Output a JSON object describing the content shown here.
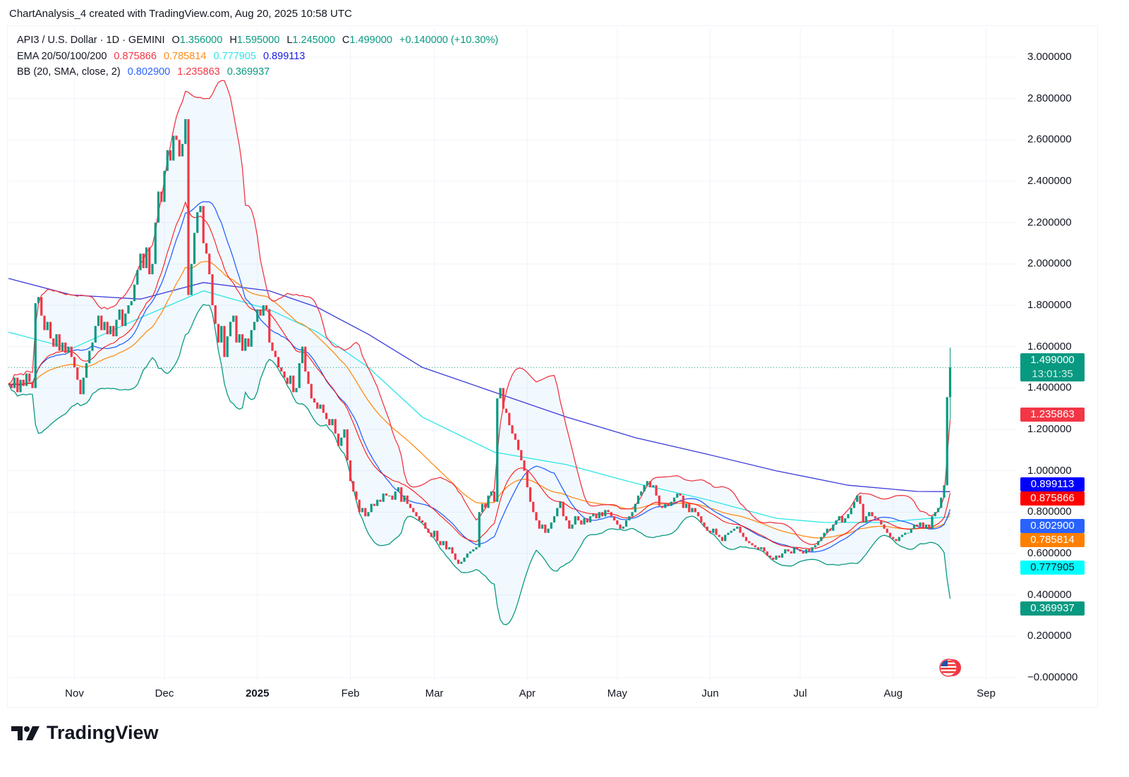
{
  "caption": "ChartAnalysis_4 created with TradingView.com, Aug 20, 2025 10:58 UTC",
  "legend": {
    "symbol": "API3 / U.S. Dollar · 1D · GEMINI",
    "o_label": "O",
    "o": "1.356000",
    "h_label": "H",
    "h": "1.595000",
    "l_label": "L",
    "l": "1.245000",
    "c_label": "C",
    "c": "1.499000",
    "change": "+0.140000 (+10.30%)",
    "ema_label": "EMA 20/50/100/200",
    "ema20": "0.875866",
    "ema50": "0.785814",
    "ema100": "0.777905",
    "ema200": "0.899113",
    "bb_label": "BB (20, SMA, close, 2)",
    "bb_basis": "0.802900",
    "bb_upper": "1.235863",
    "bb_lower": "0.369937"
  },
  "price_labels": {
    "last": "1.499000",
    "countdown": "13:01:35",
    "bb_upper": "1.235863",
    "ema200": "0.899113",
    "ema20": "0.875866",
    "bb_basis": "0.802900",
    "ema50": "0.785814",
    "ema100": "0.777905",
    "bb_lower": "0.369937"
  },
  "colors": {
    "up": "#089981",
    "down": "#f23645",
    "ema20": "#ff0000",
    "ema50": "#ff8c1a",
    "ema100": "#2ee6e6",
    "ema200": "#3b3bd9",
    "bb_basis": "#2962ff",
    "bb_upper": "#f23645",
    "bb_lower": "#089981",
    "label_ema200": "#0000ff",
    "label_ema20": "#ff0000",
    "label_bb_basis": "#2962ff",
    "label_ema50": "#ff7f00",
    "label_ema100": "#00ffff"
  },
  "branding": {
    "name": "TradingView",
    "icon": "tradingview-logo-icon"
  },
  "flag_icon": "us-flag-icon",
  "chart_data": {
    "type": "candlestick",
    "interval": "1D",
    "dates_daily_from": "2024-10-10",
    "close": [
      1.42,
      1.4,
      1.45,
      1.38,
      1.44,
      1.41,
      1.47,
      1.43,
      1.4,
      1.81,
      1.84,
      1.75,
      1.68,
      1.72,
      1.64,
      1.6,
      1.66,
      1.58,
      1.62,
      1.57,
      1.6,
      1.55,
      1.5,
      1.44,
      1.37,
      1.45,
      1.52,
      1.58,
      1.62,
      1.7,
      1.75,
      1.68,
      1.72,
      1.66,
      1.7,
      1.65,
      1.73,
      1.78,
      1.7,
      1.76,
      1.8,
      1.82,
      1.9,
      1.97,
      2.05,
      1.98,
      2.08,
      1.95,
      2.0,
      2.2,
      2.35,
      2.3,
      2.45,
      2.55,
      2.5,
      2.62,
      2.6,
      2.52,
      2.58,
      2.7,
      1.85,
      2.0,
      2.15,
      2.25,
      2.28,
      2.1,
      2.05,
      1.95,
      1.8,
      1.71,
      1.62,
      1.7,
      1.55,
      1.65,
      1.72,
      1.75,
      1.62,
      1.66,
      1.58,
      1.64,
      1.6,
      1.68,
      1.72,
      1.78,
      1.75,
      1.8,
      1.78,
      1.62,
      1.58,
      1.55,
      1.5,
      1.48,
      1.45,
      1.42,
      1.46,
      1.38,
      1.4,
      1.52,
      1.6,
      1.48,
      1.42,
      1.35,
      1.33,
      1.3,
      1.32,
      1.28,
      1.25,
      1.22,
      1.25,
      1.18,
      1.12,
      1.16,
      1.2,
      1.05,
      0.95,
      0.9,
      0.86,
      0.8,
      0.82,
      0.78,
      0.8,
      0.84,
      0.83,
      0.86,
      0.85,
      0.89,
      0.88,
      0.88,
      0.86,
      0.9,
      0.92,
      0.85,
      0.88,
      0.84,
      0.82,
      0.8,
      0.78,
      0.76,
      0.75,
      0.72,
      0.7,
      0.68,
      0.71,
      0.66,
      0.64,
      0.66,
      0.62,
      0.63,
      0.6,
      0.57,
      0.55,
      0.56,
      0.58,
      0.6,
      0.61,
      0.62,
      0.63,
      0.8,
      0.84,
      0.82,
      0.88,
      0.9,
      0.85,
      1.35,
      1.4,
      1.3,
      1.28,
      1.22,
      1.18,
      1.15,
      1.1,
      1.05,
      1.0,
      0.92,
      0.85,
      0.8,
      0.76,
      0.72,
      0.74,
      0.7,
      0.72,
      0.75,
      0.78,
      0.82,
      0.85,
      0.78,
      0.76,
      0.72,
      0.74,
      0.78,
      0.76,
      0.74,
      0.77,
      0.75,
      0.78,
      0.79,
      0.77,
      0.8,
      0.78,
      0.81,
      0.8,
      0.78,
      0.76,
      0.74,
      0.72,
      0.73,
      0.76,
      0.78,
      0.8,
      0.84,
      0.88,
      0.9,
      0.93,
      0.95,
      0.92,
      0.93,
      0.88,
      0.83,
      0.82,
      0.84,
      0.83,
      0.85,
      0.87,
      0.89,
      0.88,
      0.82,
      0.84,
      0.8,
      0.82,
      0.8,
      0.78,
      0.75,
      0.73,
      0.71,
      0.7,
      0.72,
      0.69,
      0.68,
      0.66,
      0.69,
      0.7,
      0.71,
      0.72,
      0.73,
      0.7,
      0.68,
      0.66,
      0.65,
      0.64,
      0.63,
      0.62,
      0.63,
      0.61,
      0.59,
      0.58,
      0.57,
      0.59,
      0.58,
      0.6,
      0.62,
      0.61,
      0.6,
      0.63,
      0.62,
      0.61,
      0.6,
      0.62,
      0.61,
      0.63,
      0.64,
      0.66,
      0.68,
      0.7,
      0.72,
      0.71,
      0.74,
      0.76,
      0.78,
      0.75,
      0.77,
      0.79,
      0.82,
      0.85,
      0.88,
      0.84,
      0.75,
      0.78,
      0.8,
      0.78,
      0.77,
      0.76,
      0.74,
      0.72,
      0.7,
      0.68,
      0.67,
      0.66,
      0.68,
      0.69,
      0.7,
      0.7,
      0.72,
      0.74,
      0.73,
      0.75,
      0.72,
      0.74,
      0.72,
      0.78,
      0.8,
      0.82,
      0.87,
      0.93,
      1.356,
      1.499
    ],
    "last_candle": {
      "open": 1.356,
      "high": 1.595,
      "low": 1.245,
      "close": 1.499
    },
    "ema100_samples": [
      [
        "2024-10-10",
        1.67
      ],
      [
        "2024-10-31",
        1.59
      ],
      [
        "2024-11-23",
        1.74
      ],
      [
        "2024-12-14",
        1.87
      ],
      [
        "2025-01-05",
        1.78
      ],
      [
        "2025-01-21",
        1.67
      ],
      [
        "2025-02-07",
        1.5
      ],
      [
        "2025-02-25",
        1.26
      ],
      [
        "2025-03-21",
        1.09
      ],
      [
        "2025-04-14",
        1.03
      ],
      [
        "2025-05-07",
        0.94
      ],
      [
        "2025-05-31",
        0.86
      ],
      [
        "2025-06-23",
        0.77
      ],
      [
        "2025-07-09",
        0.75
      ],
      [
        "2025-07-28",
        0.75
      ],
      [
        "2025-08-20",
        0.778
      ]
    ],
    "ema200_samples": [
      [
        "2024-10-10",
        1.93
      ],
      [
        "2024-10-31",
        1.85
      ],
      [
        "2024-11-23",
        1.83
      ],
      [
        "2024-12-14",
        1.91
      ],
      [
        "2025-01-05",
        1.87
      ],
      [
        "2025-01-21",
        1.79
      ],
      [
        "2025-02-07",
        1.66
      ],
      [
        "2025-02-25",
        1.5
      ],
      [
        "2025-03-21",
        1.38
      ],
      [
        "2025-04-14",
        1.26
      ],
      [
        "2025-05-07",
        1.16
      ],
      [
        "2025-05-31",
        1.08
      ],
      [
        "2025-06-23",
        1.0
      ],
      [
        "2025-07-17",
        0.93
      ],
      [
        "2025-08-09",
        0.9
      ],
      [
        "2025-08-20",
        0.899
      ]
    ],
    "ylim": [
      0,
      3
    ],
    "y_ticks": [
      "3.000000",
      "2.800000",
      "2.600000",
      "2.400000",
      "2.200000",
      "2.000000",
      "1.800000",
      "1.600000",
      "1.400000",
      "1.200000",
      "1.000000",
      "0.800000",
      "0.600000",
      "0.400000",
      "0.200000",
      "−0.000000"
    ],
    "x_ticks": [
      {
        "label": "Nov",
        "date": "2024-11-01"
      },
      {
        "label": "Dec",
        "date": "2024-12-01"
      },
      {
        "label": "2025",
        "date": "2025-01-01",
        "year": true
      },
      {
        "label": "Feb",
        "date": "2025-02-01"
      },
      {
        "label": "Mar",
        "date": "2025-03-01"
      },
      {
        "label": "Apr",
        "date": "2025-04-01"
      },
      {
        "label": "May",
        "date": "2025-05-01"
      },
      {
        "label": "Jun",
        "date": "2025-06-01"
      },
      {
        "label": "Jul",
        "date": "2025-07-01"
      },
      {
        "label": "Aug",
        "date": "2025-08-01"
      },
      {
        "label": "Sep",
        "date": "2025-09-01"
      }
    ],
    "grid": true
  }
}
